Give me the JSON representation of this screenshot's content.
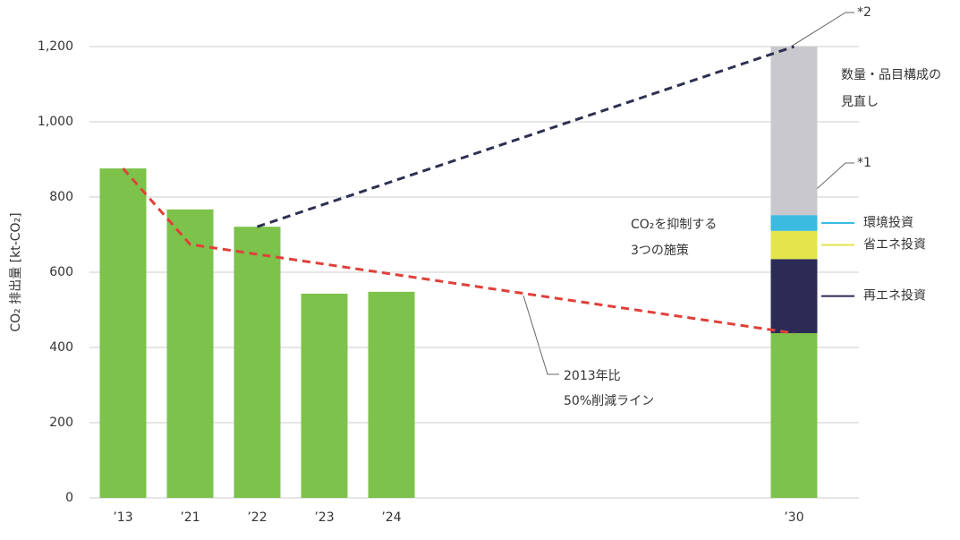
{
  "chart_data": {
    "type": "bar",
    "y_label": "CO₂ 排出量 [kt-CO₂]",
    "categories": [
      "’13",
      "’21",
      "’22",
      "’23",
      "’24",
      null,
      null,
      null,
      null,
      null,
      "’30"
    ],
    "series": [
      {
        "color": "#7dc24b",
        "values": [
          876,
          767,
          721,
          543,
          548,
          null,
          null,
          null,
          null,
          null,
          438
        ]
      },
      {
        "name": "再エネ投資",
        "color": "#2b2b55",
        "values": [
          null,
          null,
          null,
          null,
          null,
          null,
          null,
          null,
          null,
          null,
          197
        ]
      },
      {
        "name": "省エネ投資",
        "color": "#e4e44c",
        "values": [
          null,
          null,
          null,
          null,
          null,
          null,
          null,
          null,
          null,
          null,
          75
        ]
      },
      {
        "name": "環境投資",
        "color": "#3bbbe0",
        "values": [
          null,
          null,
          null,
          null,
          null,
          null,
          null,
          null,
          null,
          null,
          42
        ]
      },
      {
        "name": "数量・品目構成の見直し",
        "color": "#c9c9cd",
        "values": [
          null,
          null,
          null,
          null,
          null,
          null,
          null,
          null,
          null,
          null,
          448
        ]
      }
    ],
    "lines": [
      {
        "color": "#e0403a",
        "x": [
          0,
          1,
          10
        ],
        "values": [
          876,
          674,
          438
        ]
      },
      {
        "color": "#2e3052",
        "x": [
          2,
          10
        ],
        "values": [
          721,
          1200
        ]
      }
    ],
    "ylim": [
      0,
      1200
    ],
    "yticks": [
      0,
      200,
      400,
      600,
      800,
      {
        "value": 1000,
        "label": "1,000"
      },
      {
        "value": 1200,
        "label": "1,200"
      }
    ],
    "grid": true,
    "annotations": {
      "note2": "*2",
      "note1": "*1",
      "measures": [
        "CO₂を抑制する",
        "3つの施策"
      ],
      "target": [
        "2013年比",
        "50%削減ライン"
      ]
    }
  }
}
